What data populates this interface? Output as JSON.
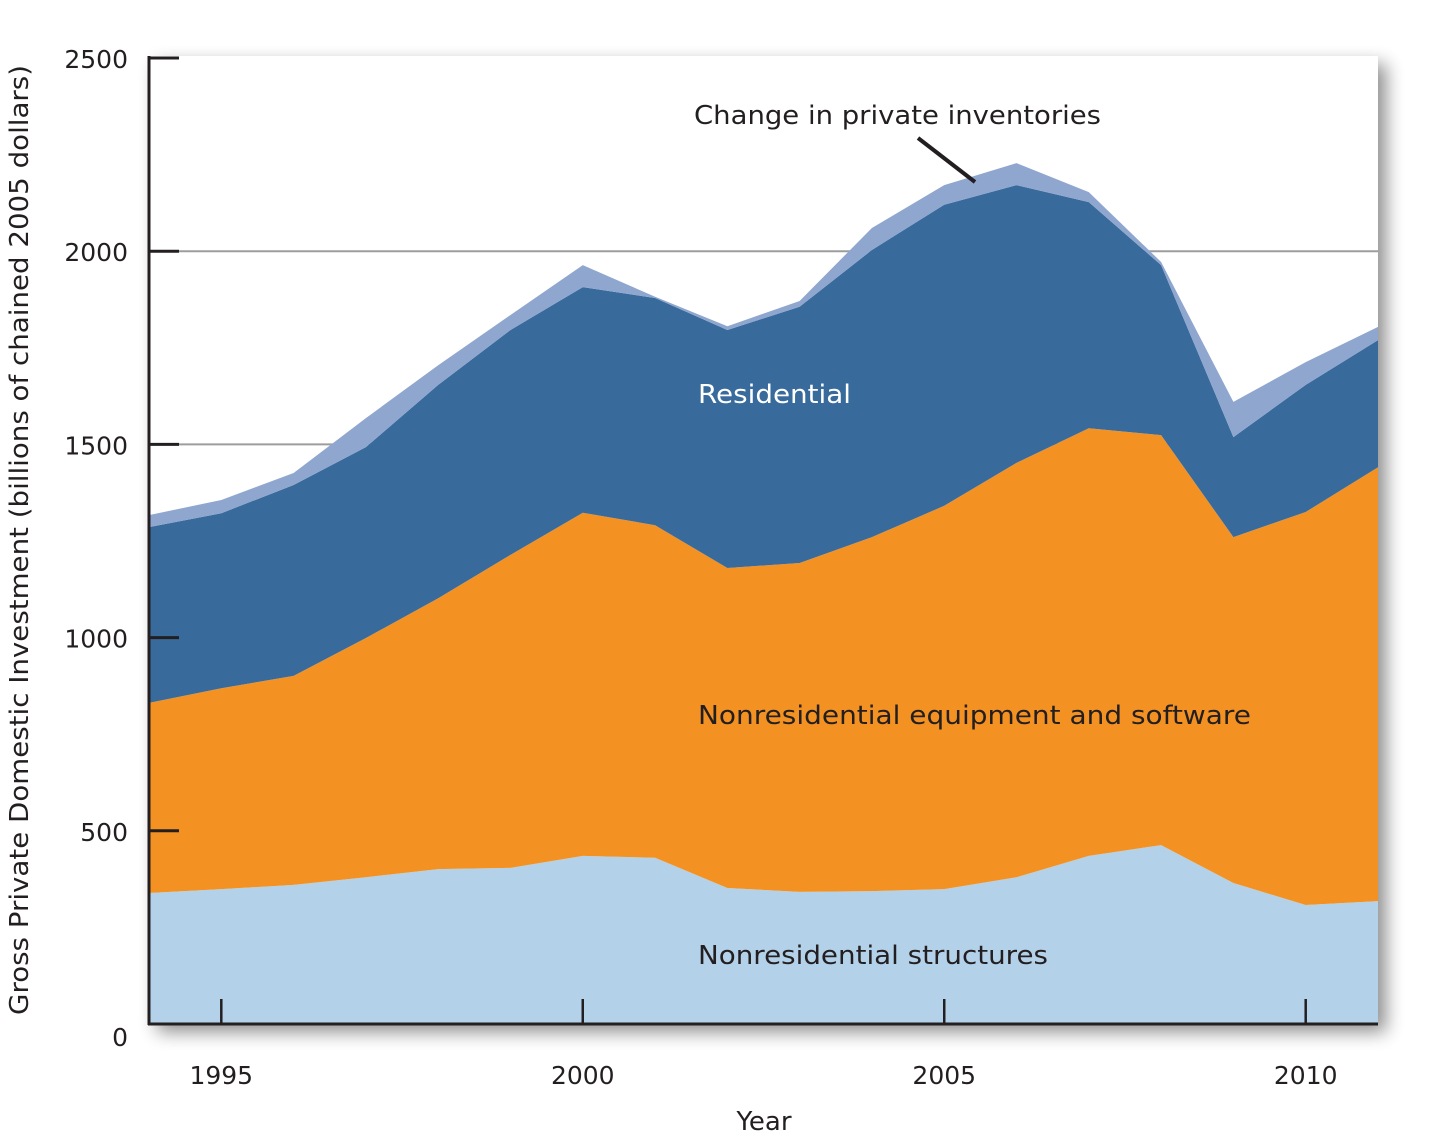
{
  "chart_data": {
    "type": "area",
    "stacked": true,
    "title": "",
    "xlabel": "Year",
    "ylabel": "Gross Private Domestic Investment (billions of chained 2005 dollars)",
    "xlim": [
      1994,
      2011
    ],
    "ylim": [
      0,
      2500
    ],
    "x_ticks": [
      1995,
      2000,
      2005,
      2010
    ],
    "x_tick_labels": [
      "1995",
      "2000",
      "2005",
      "2010"
    ],
    "y_ticks": [
      0,
      500,
      1000,
      1500,
      2000,
      2500
    ],
    "y_tick_labels": [
      "0",
      "500",
      "1000",
      "1500",
      "2000",
      "2500"
    ],
    "grid": "horizontal gridlines at 1500, 2000",
    "gridlines_y": [
      1500,
      2000
    ],
    "x": [
      1994,
      1995,
      1996,
      1997,
      1998,
      1999,
      2000,
      2001,
      2002,
      2003,
      2004,
      2005,
      2006,
      2007,
      2008,
      2009,
      2010,
      2011
    ],
    "series": [
      {
        "name": "Nonresidential structures",
        "color": "#b3d1e9",
        "label_color": "#231f20",
        "values": [
          339,
          349,
          360,
          380,
          401,
          404,
          435,
          430,
          352,
          342,
          344,
          349,
          380,
          435,
          463,
          365,
          308,
          318
        ]
      },
      {
        "name": "Nonresidential equipment and software",
        "color": "#f39223",
        "label_color": "#231f20",
        "values": [
          492,
          520,
          541,
          619,
          701,
          810,
          888,
          861,
          828,
          851,
          916,
          992,
          1072,
          1107,
          1061,
          895,
          1017,
          1123
        ]
      },
      {
        "name": "Residential",
        "color": "#386a9c",
        "label_color": "#ffffff",
        "values": [
          455,
          453,
          494,
          494,
          552,
          582,
          584,
          588,
          616,
          663,
          743,
          779,
          719,
          585,
          440,
          259,
          329,
          329
        ]
      },
      {
        "name": "Change in private inventories",
        "color": "#8fa6cf",
        "label_color": "#231f20",
        "values": [
          31,
          34,
          31,
          75,
          51,
          39,
          57,
          3,
          10,
          15,
          57,
          51,
          57,
          26,
          8,
          91,
          59,
          34
        ]
      }
    ],
    "annotations": [
      {
        "text": "Change in private inventories",
        "points_to_year": 2005.4,
        "has_leader_line": true
      },
      {
        "text": "Residential"
      },
      {
        "text": "Nonresidential equipment and software"
      },
      {
        "text": "Nonresidential structures"
      }
    ],
    "legend": "none (inline area labels)"
  }
}
